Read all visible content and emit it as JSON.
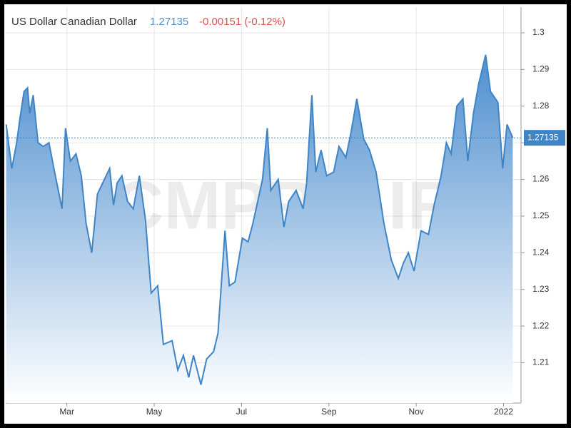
{
  "chart_data": {
    "type": "area",
    "title": "US Dollar Canadian Dollar",
    "price": 1.27135,
    "change": "-0.00151 (-0.12%)",
    "watermark": "CMPRO.IR",
    "color": "#3d85c6",
    "grid": true,
    "x": [
      0.61,
      0.74,
      0.85,
      0.93,
      1.02,
      1.1,
      1.15,
      1.23,
      1.34,
      1.46,
      1.59,
      1.72,
      1.89,
      1.97,
      2.08,
      2.21,
      2.33,
      2.44,
      2.57,
      2.7,
      2.82,
      2.98,
      3.07,
      3.15,
      3.26,
      3.39,
      3.52,
      3.66,
      3.8,
      3.93,
      4.08,
      4.21,
      4.41,
      4.54,
      4.67,
      4.79,
      4.9,
      5.07,
      5.2,
      5.36,
      5.46,
      5.62,
      5.72,
      5.85,
      6.02,
      6.15,
      6.26,
      6.48,
      6.59,
      6.67,
      6.84,
      6.97,
      7.08,
      7.25,
      7.41,
      7.49,
      7.61,
      7.7,
      7.82,
      7.95,
      8.11,
      8.23,
      8.39,
      8.51,
      8.64,
      8.8,
      8.93,
      9.08,
      9.26,
      9.43,
      9.59,
      9.7,
      9.82,
      9.95,
      10.11,
      10.28,
      10.41,
      10.57,
      10.69,
      10.8,
      10.93,
      11.07,
      11.18,
      11.31,
      11.43,
      11.59,
      11.7,
      11.87,
      11.98,
      12.08,
      12.21
    ],
    "values": [
      1.275,
      1.263,
      1.27,
      1.277,
      1.284,
      1.285,
      1.278,
      1.283,
      1.27,
      1.269,
      1.27,
      1.262,
      1.252,
      1.274,
      1.265,
      1.267,
      1.261,
      1.248,
      1.24,
      1.256,
      1.259,
      1.263,
      1.253,
      1.259,
      1.261,
      1.254,
      1.252,
      1.261,
      1.249,
      1.229,
      1.231,
      1.215,
      1.216,
      1.208,
      1.212,
      1.206,
      1.212,
      1.204,
      1.211,
      1.213,
      1.218,
      1.246,
      1.231,
      1.232,
      1.244,
      1.243,
      1.248,
      1.26,
      1.274,
      1.257,
      1.26,
      1.247,
      1.254,
      1.257,
      1.252,
      1.259,
      1.283,
      1.262,
      1.268,
      1.261,
      1.262,
      1.269,
      1.266,
      1.273,
      1.282,
      1.271,
      1.268,
      1.262,
      1.248,
      1.238,
      1.233,
      1.237,
      1.24,
      1.235,
      1.246,
      1.245,
      1.253,
      1.261,
      1.27,
      1.267,
      1.28,
      1.282,
      1.265,
      1.278,
      1.286,
      1.294,
      1.284,
      1.281,
      1.263,
      1.275,
      1.27135
    ],
    "xlim": [
      0.6,
      12.4
    ],
    "xticks": [
      {
        "value": 2,
        "label": "Mar"
      },
      {
        "value": 4,
        "label": "May"
      },
      {
        "value": 6,
        "label": "Jul"
      },
      {
        "value": 8,
        "label": "Sep"
      },
      {
        "value": 10,
        "label": "Nov"
      },
      {
        "value": 12,
        "label": "2022"
      }
    ],
    "ylim": [
      1.199,
      1.307
    ],
    "yticks": [
      1.21,
      1.22,
      1.23,
      1.24,
      1.25,
      1.26,
      1.27,
      1.28,
      1.29,
      1.3
    ]
  }
}
